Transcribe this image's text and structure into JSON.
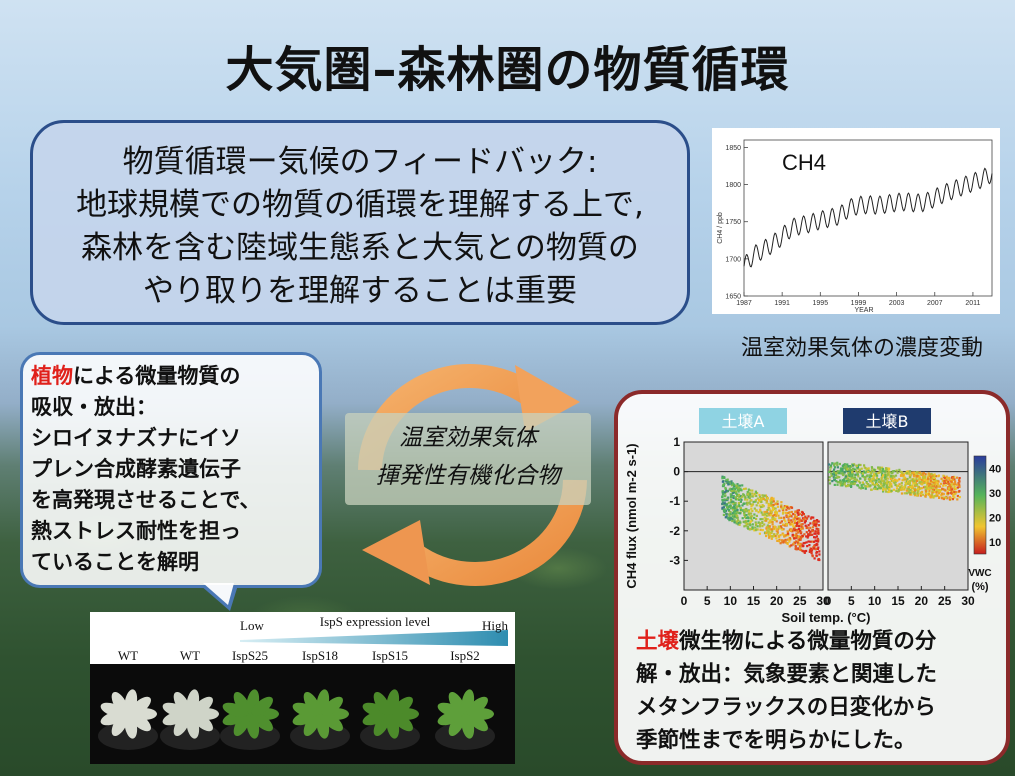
{
  "slide": {
    "title": "大気圏–森林圏の物質循環",
    "main_box_lines": [
      "物質循環ー気候のフィードバック:",
      "地球規模での物質の循環を理解する上で,",
      "森林を含む陸域生態系と大気との物質の",
      "やり取りを理解することは重要"
    ],
    "cycle_labels": [
      "温室効果気体",
      "揮発性有機化合物"
    ],
    "plant_box": {
      "highlight": "植物",
      "lines": [
        "による微量物質の",
        "吸収・放出：",
        "シロイヌナズナにイソ",
        "プレン合成酵素遺伝子",
        "を高発現させることで、",
        "熱ストレス耐性を担っ",
        "ていることを解明"
      ]
    },
    "ch4_caption": "温室効果気体の濃度変動",
    "soil_box": {
      "highlight": "土壌",
      "lines": [
        "微生物による微量物質の分",
        "解・放出：気象要素と関連した",
        "メタンフラックスの日変化から",
        "季節性までを明らかにした。"
      ]
    },
    "colors": {
      "highlight": "#e0201a",
      "box_border": "#2b4e8a",
      "soil_border": "#8b2a2a",
      "arrow": "#f0a25a"
    }
  },
  "chart_data": [
    {
      "type": "line",
      "title": "CH4",
      "xlabel": "YEAR",
      "ylabel": "CH4 / ppb",
      "xlim": [
        1987,
        2013
      ],
      "ylim": [
        1650,
        1860
      ],
      "xticks": [
        "1987",
        "1991",
        "1995",
        "1999",
        "2003",
        "2007",
        "2011"
      ],
      "yticks": [
        "1650",
        "1700",
        "1750",
        "1800",
        "1850"
      ],
      "x": [
        1987,
        1988,
        1989,
        1990,
        1991,
        1992,
        1993,
        1994,
        1995,
        1996,
        1997,
        1998,
        1999,
        2000,
        2001,
        2002,
        2003,
        2004,
        2005,
        2006,
        2007,
        2008,
        2009,
        2010,
        2011,
        2012,
        2013
      ],
      "values": [
        1690,
        1705,
        1712,
        1720,
        1730,
        1742,
        1745,
        1748,
        1752,
        1755,
        1758,
        1768,
        1772,
        1773,
        1772,
        1774,
        1776,
        1777,
        1775,
        1776,
        1782,
        1788,
        1793,
        1798,
        1803,
        1808,
        1815
      ]
    },
    {
      "type": "scatter",
      "panels": [
        "土壌A",
        "土壌B"
      ],
      "xlabel": "Soil temp. (°C)",
      "ylabel": "CH4 flux (nmol m-2 s-1)",
      "xlim": [
        0,
        30
      ],
      "ylim": [
        -4,
        1
      ],
      "xticks": [
        "0",
        "5",
        "10",
        "15",
        "20",
        "25",
        "30"
      ],
      "yticks": [
        "1",
        "0",
        "-1",
        "-2",
        "-3"
      ],
      "colorbar": {
        "label": "VWC (%)",
        "ticks": [
          "40",
          "30",
          "20",
          "10"
        ],
        "range": [
          5,
          45
        ]
      },
      "soilA": {
        "xrange": [
          8,
          29
        ],
        "yrange": [
          -3.4,
          -0.3
        ]
      },
      "soilB": {
        "xrange": [
          0,
          28
        ],
        "yrange": [
          -1.0,
          0.4
        ]
      }
    }
  ],
  "photo": {
    "expression_low": "Low",
    "expression_title": "IspS expression level",
    "expression_high": "High",
    "labels": [
      "WT",
      "WT",
      "IspS25",
      "IspS18",
      "IspS15",
      "IspS2"
    ]
  }
}
